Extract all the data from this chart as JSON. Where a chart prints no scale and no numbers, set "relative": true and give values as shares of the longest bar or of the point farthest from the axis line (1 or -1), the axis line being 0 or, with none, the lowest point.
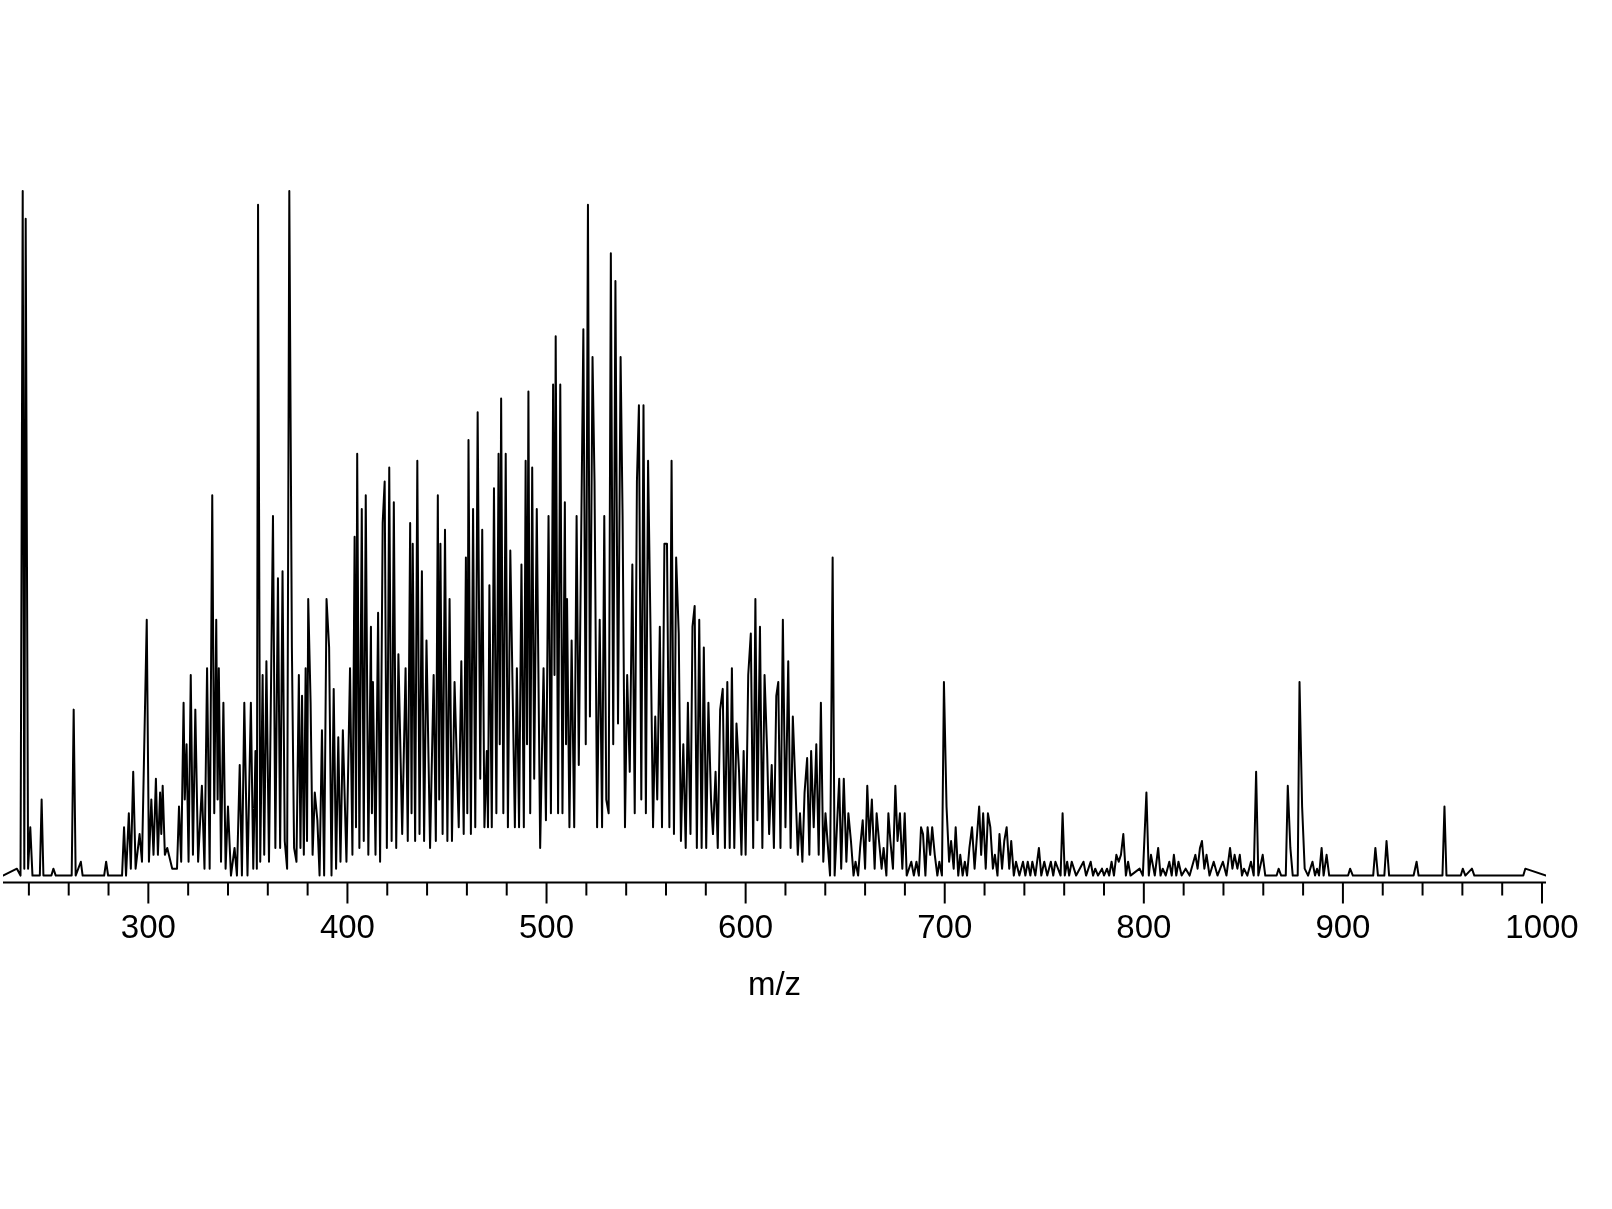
{
  "chart_data": {
    "type": "line",
    "relative": true,
    "xlabel": "m/z",
    "color": "#000000",
    "xlim": [
      227,
      1002
    ],
    "xticks": [
      {
        "value": 240,
        "label": null
      },
      {
        "value": 260,
        "label": null
      },
      {
        "value": 280,
        "label": null
      },
      300,
      {
        "value": 320,
        "label": null
      },
      {
        "value": 340,
        "label": null
      },
      {
        "value": 360,
        "label": null
      },
      {
        "value": 380,
        "label": null
      },
      400,
      {
        "value": 420,
        "label": null
      },
      {
        "value": 440,
        "label": null
      },
      {
        "value": 460,
        "label": null
      },
      {
        "value": 480,
        "label": null
      },
      500,
      {
        "value": 520,
        "label": null
      },
      {
        "value": 540,
        "label": null
      },
      {
        "value": 560,
        "label": null
      },
      {
        "value": 580,
        "label": null
      },
      600,
      {
        "value": 620,
        "label": null
      },
      {
        "value": 640,
        "label": null
      },
      {
        "value": 660,
        "label": null
      },
      {
        "value": 680,
        "label": null
      },
      700,
      {
        "value": 720,
        "label": null
      },
      {
        "value": 740,
        "label": null
      },
      {
        "value": 760,
        "label": null
      },
      {
        "value": 780,
        "label": null
      },
      800,
      {
        "value": 820,
        "label": null
      },
      {
        "value": 840,
        "label": null
      },
      {
        "value": 860,
        "label": null
      },
      {
        "value": 880,
        "label": null
      },
      900,
      {
        "value": 920,
        "label": null
      },
      {
        "value": 940,
        "label": null
      },
      {
        "value": 960,
        "label": null
      },
      {
        "value": 980,
        "label": null
      },
      1000
    ],
    "x": [
      227.0,
      234.0,
      235.8,
      236.9,
      237.7,
      238.4,
      239.6,
      240.7,
      241.8,
      245.5,
      246.4,
      247.3,
      251.3,
      252.3,
      253.5,
      261.5,
      262.5,
      263.5,
      266.1,
      267.0,
      277.8,
      278.8,
      279.8,
      286.8,
      287.8,
      288.8,
      290.2,
      291.2,
      292.4,
      293.6,
      295.6,
      296.8,
      299.2,
      300.3,
      301.5,
      302.6,
      303.8,
      304.8,
      305.9,
      306.5,
      307.2,
      308.3,
      309.5,
      312.0,
      314.4,
      315.4,
      316.5,
      317.7,
      318.3,
      319.2,
      320.2,
      321.3,
      322.4,
      323.6,
      325.0,
      326.9,
      328.2,
      329.5,
      330.8,
      332.1,
      333.1,
      334.1,
      334.8,
      335.4,
      336.5,
      337.7,
      338.8,
      340.0,
      341.5,
      343.3,
      344.5,
      345.9,
      347.0,
      348.2,
      349.8,
      351.5,
      352.7,
      353.8,
      354.5,
      355.1,
      356.2,
      357.4,
      358.2,
      359.3,
      360.6,
      362.6,
      363.8,
      365.1,
      366.2,
      367.4,
      368.5,
      369.7,
      370.8,
      372.1,
      373.2,
      374.4,
      375.6,
      376.4,
      377.2,
      378.1,
      379.0,
      379.7,
      380.3,
      381.5,
      382.5,
      383.6,
      384.9,
      386.0,
      387.2,
      388.3,
      389.5,
      390.8,
      392.0,
      393.1,
      394.3,
      395.4,
      396.5,
      397.7,
      399.5,
      401.3,
      402.5,
      403.6,
      404.3,
      404.9,
      406.0,
      407.2,
      408.2,
      409.2,
      410.5,
      411.8,
      412.3,
      412.8,
      414.1,
      415.4,
      416.4,
      417.7,
      418.7,
      419.8,
      421.0,
      422.2,
      423.3,
      424.5,
      425.6,
      427.5,
      429.2,
      430.3,
      431.5,
      432.2,
      432.8,
      434.0,
      435.1,
      436.2,
      437.4,
      438.5,
      439.7,
      441.5,
      443.3,
      444.4,
      445.4,
      446.1,
      446.7,
      447.8,
      449.0,
      450.2,
      451.3,
      452.5,
      453.8,
      455.9,
      457.2,
      458.4,
      459.5,
      460.2,
      460.8,
      462.0,
      463.1,
      464.2,
      465.4,
      466.7,
      467.7,
      468.8,
      470.0,
      470.6,
      471.3,
      472.5,
      473.6,
      474.8,
      475.9,
      476.5,
      477.2,
      478.3,
      479.5,
      480.6,
      481.8,
      484.1,
      485.1,
      486.2,
      487.4,
      488.6,
      489.5,
      490.2,
      490.9,
      491.8,
      492.8,
      493.8,
      495.1,
      496.8,
      498.5,
      499.7,
      501.0,
      502.2,
      503.3,
      504.0,
      504.6,
      505.8,
      506.9,
      508.0,
      509.2,
      509.8,
      510.3,
      511.5,
      512.6,
      513.9,
      515.1,
      516.2,
      518.5,
      519.7,
      520.8,
      521.8,
      523.1,
      524.1,
      525.4,
      526.7,
      527.9,
      529.0,
      530.0,
      531.2,
      532.3,
      533.5,
      534.6,
      535.9,
      537.2,
      538.2,
      539.4,
      540.5,
      541.8,
      543.1,
      544.3,
      545.4,
      546.4,
      547.6,
      548.7,
      549.9,
      551.0,
      552.3,
      553.5,
      554.6,
      555.6,
      556.9,
      558.0,
      559.2,
      560.5,
      561.7,
      562.8,
      564.0,
      565.1,
      566.4,
      567.5,
      568.7,
      569.9,
      571.0,
      572.3,
      573.3,
      574.4,
      575.5,
      576.7,
      577.9,
      579.0,
      580.2,
      581.3,
      582.6,
      583.6,
      584.9,
      586.0,
      587.2,
      588.5,
      589.6,
      590.8,
      592.0,
      593.1,
      594.3,
      595.4,
      596.7,
      597.9,
      599.0,
      600.0,
      601.3,
      602.6,
      603.8,
      604.9,
      605.9,
      607.2,
      608.4,
      609.5,
      610.8,
      611.8,
      613.1,
      614.2,
      615.4,
      616.4,
      617.5,
      618.7,
      620.0,
      621.4,
      622.6,
      623.7,
      625.0,
      626.2,
      627.3,
      628.5,
      629.6,
      630.9,
      632.0,
      632.9,
      634.2,
      635.5,
      636.7,
      637.8,
      639.0,
      640.1,
      642.4,
      643.7,
      644.7,
      647.0,
      648.0,
      649.3,
      650.6,
      651.6,
      652.9,
      654.2,
      655.2,
      656.5,
      657.5,
      658.8,
      660.0,
      661.1,
      662.2,
      663.4,
      664.8,
      665.8,
      667.0,
      668.3,
      669.3,
      670.7,
      671.7,
      672.7,
      674.0,
      675.2,
      676.3,
      677.5,
      678.7,
      679.9,
      680.9,
      683.2,
      684.5,
      685.8,
      687.0,
      688.1,
      689.1,
      690.3,
      691.4,
      692.7,
      693.7,
      695.0,
      696.3,
      697.3,
      698.6,
      699.6,
      700.9,
      702.2,
      703.2,
      704.5,
      705.5,
      706.8,
      707.8,
      709.0,
      710.1,
      711.2,
      712.4,
      713.7,
      715.0,
      716.0,
      717.3,
      718.3,
      719.3,
      720.6,
      721.7,
      722.9,
      724.2,
      725.2,
      726.5,
      727.5,
      728.8,
      729.9,
      731.1,
      732.4,
      733.4,
      734.7,
      735.8,
      737.5,
      739.3,
      740.5,
      741.7,
      743.0,
      744.0,
      745.5,
      747.3,
      748.5,
      750.0,
      751.5,
      753.3,
      754.5,
      755.6,
      758.2,
      759.2,
      760.3,
      761.5,
      762.5,
      763.8,
      766.0,
      769.7,
      771.0,
      773.3,
      774.5,
      775.6,
      777.0,
      779.0,
      780.0,
      781.5,
      782.6,
      783.8,
      785.0,
      786.2,
      787.4,
      788.5,
      789.7,
      791.0,
      792.1,
      793.3,
      797.9,
      799.5,
      801.3,
      802.5,
      803.6,
      805.5,
      807.2,
      808.4,
      809.5,
      811.0,
      812.8,
      814.0,
      815.1,
      816.3,
      817.4,
      819.0,
      821.0,
      823.0,
      825.9,
      827.0,
      828.2,
      829.2,
      830.4,
      831.5,
      833.0,
      835.1,
      837.0,
      839.7,
      841.5,
      843.3,
      844.5,
      845.6,
      847.0,
      848.2,
      849.3,
      850.3,
      852.0,
      853.8,
      855.2,
      856.4,
      857.5,
      859.7,
      861.0,
      866.7,
      867.7,
      869.0,
      871.3,
      872.3,
      873.6,
      874.8,
      877.3,
      878.2,
      879.5,
      880.8,
      882.5,
      884.7,
      886.0,
      887.0,
      888.0,
      889.3,
      890.3,
      891.8,
      893.1,
      902.6,
      903.6,
      905.0,
      915.2,
      916.3,
      917.6,
      920.8,
      921.9,
      923.2,
      935.5,
      937.0,
      938.0,
      950.0,
      951.0,
      952.0,
      959.2,
      960.2,
      961.5,
      964.8,
      966.0,
      990.6,
      991.6,
      1002.0
    ],
    "values": [
      0.01,
      0.02,
      0.01,
      1.0,
      0.02,
      0.96,
      0.02,
      0.08,
      0.01,
      0.01,
      0.12,
      0.01,
      0.01,
      0.02,
      0.01,
      0.01,
      0.25,
      0.01,
      0.03,
      0.01,
      0.01,
      0.03,
      0.01,
      0.01,
      0.08,
      0.01,
      0.1,
      0.02,
      0.16,
      0.02,
      0.07,
      0.03,
      0.38,
      0.03,
      0.12,
      0.04,
      0.15,
      0.04,
      0.13,
      0.07,
      0.14,
      0.04,
      0.05,
      0.02,
      0.02,
      0.11,
      0.03,
      0.26,
      0.12,
      0.2,
      0.03,
      0.3,
      0.04,
      0.25,
      0.03,
      0.14,
      0.02,
      0.31,
      0.02,
      0.56,
      0.1,
      0.38,
      0.12,
      0.31,
      0.03,
      0.26,
      0.02,
      0.11,
      0.01,
      0.05,
      0.01,
      0.17,
      0.01,
      0.26,
      0.01,
      0.26,
      0.02,
      0.19,
      0.02,
      0.98,
      0.03,
      0.3,
      0.04,
      0.32,
      0.03,
      0.53,
      0.05,
      0.44,
      0.05,
      0.45,
      0.06,
      0.02,
      1.0,
      0.34,
      0.05,
      0.03,
      0.3,
      0.05,
      0.27,
      0.04,
      0.31,
      0.06,
      0.41,
      0.26,
      0.04,
      0.13,
      0.09,
      0.01,
      0.22,
      0.01,
      0.41,
      0.34,
      0.01,
      0.28,
      0.02,
      0.21,
      0.03,
      0.22,
      0.03,
      0.31,
      0.04,
      0.5,
      0.08,
      0.62,
      0.05,
      0.54,
      0.06,
      0.56,
      0.04,
      0.37,
      0.1,
      0.29,
      0.04,
      0.39,
      0.03,
      0.52,
      0.58,
      0.05,
      0.6,
      0.06,
      0.55,
      0.05,
      0.33,
      0.07,
      0.31,
      0.06,
      0.52,
      0.1,
      0.49,
      0.06,
      0.61,
      0.07,
      0.45,
      0.06,
      0.35,
      0.05,
      0.3,
      0.06,
      0.56,
      0.12,
      0.49,
      0.07,
      0.51,
      0.06,
      0.41,
      0.06,
      0.29,
      0.08,
      0.32,
      0.07,
      0.47,
      0.1,
      0.64,
      0.07,
      0.54,
      0.08,
      0.68,
      0.15,
      0.51,
      0.08,
      0.19,
      0.08,
      0.43,
      0.08,
      0.57,
      0.1,
      0.62,
      0.2,
      0.7,
      0.1,
      0.62,
      0.08,
      0.48,
      0.08,
      0.31,
      0.08,
      0.46,
      0.08,
      0.61,
      0.2,
      0.71,
      0.1,
      0.6,
      0.15,
      0.54,
      0.05,
      0.31,
      0.09,
      0.53,
      0.1,
      0.72,
      0.3,
      0.79,
      0.1,
      0.72,
      0.1,
      0.55,
      0.2,
      0.41,
      0.08,
      0.35,
      0.08,
      0.53,
      0.17,
      0.8,
      0.2,
      0.98,
      0.24,
      0.76,
      0.58,
      0.08,
      0.38,
      0.08,
      0.53,
      0.12,
      0.1,
      0.91,
      0.2,
      0.87,
      0.23,
      0.76,
      0.53,
      0.08,
      0.3,
      0.16,
      0.46,
      0.1,
      0.58,
      0.69,
      0.12,
      0.69,
      0.1,
      0.61,
      0.35,
      0.08,
      0.24,
      0.12,
      0.37,
      0.08,
      0.49,
      0.49,
      0.08,
      0.61,
      0.07,
      0.47,
      0.36,
      0.06,
      0.2,
      0.05,
      0.26,
      0.07,
      0.37,
      0.4,
      0.05,
      0.38,
      0.05,
      0.34,
      0.05,
      0.26,
      0.12,
      0.07,
      0.16,
      0.05,
      0.25,
      0.28,
      0.05,
      0.29,
      0.05,
      0.31,
      0.05,
      0.23,
      0.16,
      0.04,
      0.19,
      0.04,
      0.3,
      0.36,
      0.05,
      0.41,
      0.09,
      0.37,
      0.05,
      0.3,
      0.19,
      0.07,
      0.17,
      0.05,
      0.27,
      0.29,
      0.05,
      0.38,
      0.08,
      0.32,
      0.05,
      0.24,
      0.14,
      0.04,
      0.1,
      0.03,
      0.13,
      0.18,
      0.04,
      0.19,
      0.08,
      0.2,
      0.04,
      0.26,
      0.03,
      0.1,
      0.01,
      0.47,
      0.01,
      0.15,
      0.02,
      0.15,
      0.03,
      0.1,
      0.06,
      0.01,
      0.03,
      0.01,
      0.05,
      0.09,
      0.02,
      0.14,
      0.06,
      0.12,
      0.02,
      0.1,
      0.06,
      0.02,
      0.05,
      0.01,
      0.1,
      0.06,
      0.02,
      0.14,
      0.06,
      0.1,
      0.02,
      0.1,
      0.01,
      0.03,
      0.01,
      0.03,
      0.01,
      0.08,
      0.07,
      0.01,
      0.08,
      0.04,
      0.08,
      0.04,
      0.01,
      0.03,
      0.01,
      0.29,
      0.11,
      0.03,
      0.06,
      0.02,
      0.08,
      0.01,
      0.04,
      0.01,
      0.03,
      0.01,
      0.05,
      0.08,
      0.02,
      0.06,
      0.11,
      0.04,
      0.1,
      0.02,
      0.1,
      0.08,
      0.02,
      0.04,
      0.01,
      0.07,
      0.02,
      0.06,
      0.08,
      0.02,
      0.06,
      0.01,
      0.03,
      0.01,
      0.03,
      0.01,
      0.03,
      0.01,
      0.03,
      0.01,
      0.05,
      0.01,
      0.03,
      0.01,
      0.03,
      0.01,
      0.03,
      0.01,
      0.1,
      0.01,
      0.03,
      0.01,
      0.03,
      0.01,
      0.03,
      0.01,
      0.03,
      0.01,
      0.02,
      0.01,
      0.02,
      0.01,
      0.02,
      0.01,
      0.03,
      0.01,
      0.04,
      0.03,
      0.04,
      0.07,
      0.01,
      0.03,
      0.01,
      0.02,
      0.01,
      0.13,
      0.01,
      0.04,
      0.01,
      0.05,
      0.01,
      0.02,
      0.01,
      0.03,
      0.01,
      0.04,
      0.01,
      0.03,
      0.01,
      0.02,
      0.01,
      0.04,
      0.02,
      0.05,
      0.06,
      0.02,
      0.04,
      0.01,
      0.03,
      0.01,
      0.03,
      0.01,
      0.05,
      0.02,
      0.04,
      0.02,
      0.04,
      0.01,
      0.02,
      0.01,
      0.03,
      0.01,
      0.16,
      0.01,
      0.04,
      0.01,
      0.01,
      0.02,
      0.01,
      0.01,
      0.14,
      0.05,
      0.01,
      0.01,
      0.29,
      0.11,
      0.02,
      0.01,
      0.03,
      0.01,
      0.02,
      0.01,
      0.05,
      0.01,
      0.04,
      0.01,
      0.01,
      0.02,
      0.01,
      0.01,
      0.05,
      0.01,
      0.01,
      0.06,
      0.01,
      0.01,
      0.03,
      0.01,
      0.01,
      0.11,
      0.01,
      0.01,
      0.02,
      0.01,
      0.02,
      0.01,
      0.01,
      0.02,
      0.01
    ]
  }
}
